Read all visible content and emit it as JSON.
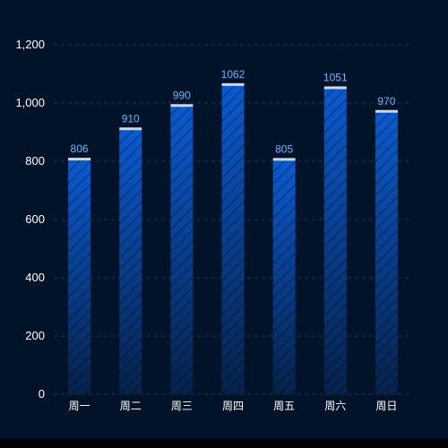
{
  "chart_data": {
    "type": "bar",
    "categories": [
      "周一",
      "周二",
      "周三",
      "周四",
      "周五",
      "周六",
      "周日"
    ],
    "values": [
      806,
      910,
      990,
      1062,
      805,
      1051,
      970
    ],
    "value_labels": [
      "806",
      "910",
      "990",
      "1062",
      "805",
      "1051",
      "970"
    ],
    "title": "",
    "xlabel": "",
    "ylabel": "",
    "ylim": [
      0,
      1200
    ],
    "yticks": [
      0,
      200,
      400,
      600,
      800,
      1000,
      1200
    ],
    "ytick_labels": [
      "0",
      "200",
      "400",
      "600",
      "800",
      "1,000",
      "1,200"
    ],
    "grid": true,
    "legend": "none",
    "colors": {
      "background": "#011329",
      "bar_top": "#0a5ad0",
      "bar_bottom": "#06224a",
      "bar_cap": "#c9d9ea",
      "value_label": "#67b6ff",
      "axis_text": "#ffffff",
      "grid": "#0f3b52"
    }
  }
}
